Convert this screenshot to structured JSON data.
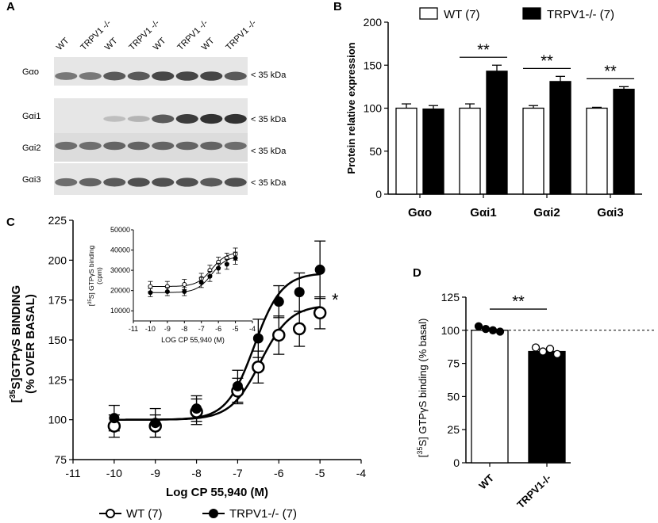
{
  "panels": {
    "A": {
      "letter": "A",
      "lane_labels": [
        "WT",
        "TRPV1 -/-",
        "WT",
        "TRPV1 -/-",
        "WT",
        "TRPV1 -/-",
        "WT",
        "TRPV1 -/-"
      ],
      "rows": [
        {
          "label": "Gαo",
          "kda": "< 35 kDa",
          "intensity": [
            0.55,
            0.55,
            0.7,
            0.7,
            0.8,
            0.8,
            0.8,
            0.7
          ]
        },
        {
          "label": "Gαi1",
          "kda": "< 35 kDa",
          "intensity": [
            0.0,
            0.0,
            0.2,
            0.25,
            0.7,
            0.85,
            0.9,
            0.9
          ]
        },
        {
          "label": "Gαi2",
          "kda": "< 35 kDa",
          "intensity": [
            0.6,
            0.6,
            0.65,
            0.65,
            0.65,
            0.65,
            0.65,
            0.6
          ]
        },
        {
          "label": "Gαi3",
          "kda": "< 35 kDa",
          "intensity": [
            0.6,
            0.65,
            0.7,
            0.75,
            0.75,
            0.75,
            0.7,
            0.75
          ]
        }
      ]
    },
    "B": {
      "letter": "B"
    },
    "C": {
      "letter": "C"
    },
    "D": {
      "letter": "D"
    }
  },
  "chart_data": [
    {
      "id": "B",
      "type": "bar",
      "title": "",
      "ylabel": "Protein relative expression",
      "xlabel": "",
      "ylim": [
        0,
        200
      ],
      "yticks": [
        0,
        50,
        100,
        150,
        200
      ],
      "categories": [
        "Gαo",
        "Gαi1",
        "Gαi2",
        "Gαi3"
      ],
      "series": [
        {
          "name": "WT (7)",
          "color": "#ffffff",
          "values": [
            100,
            100,
            100,
            100
          ],
          "errors": [
            5,
            5,
            3,
            1
          ]
        },
        {
          "name": "TRPV1-/- (7)",
          "color": "#000000",
          "values": [
            99,
            143,
            131,
            122
          ],
          "errors": [
            4,
            7,
            6,
            3
          ]
        }
      ],
      "significance": [
        {
          "category": "Gαi1",
          "label": "**"
        },
        {
          "category": "Gαi2",
          "label": "**"
        },
        {
          "category": "Gαi3",
          "label": "**"
        }
      ]
    },
    {
      "id": "C",
      "type": "scatter",
      "title": "",
      "ylabel_line1": "[35S]GTPγS BINDING",
      "ylabel_line2": "(% OVER BASAL)",
      "ylabel_sup": "35",
      "ylabel_rest": "S]GTPγS BINDING",
      "xlabel": "Log CP 55,940 (M)",
      "xlim": [
        -11,
        -4
      ],
      "ylim": [
        75,
        225
      ],
      "xticks": [
        -11,
        -10,
        -9,
        -8,
        -7,
        -6,
        -5,
        -4
      ],
      "yticks": [
        75,
        100,
        125,
        150,
        175,
        200,
        225
      ],
      "series": [
        {
          "name": "WT (7)",
          "marker": "open",
          "x": [
            -10,
            -9,
            -8,
            -7,
            -6.5,
            -6,
            -5.5,
            -5
          ],
          "y": [
            96,
            96,
            105,
            118,
            133,
            153,
            157,
            167
          ],
          "errors": [
            7,
            7,
            8,
            8,
            10,
            12,
            11,
            10
          ],
          "fit": {
            "bottom": 100,
            "top": 172,
            "logec50": -6.45,
            "hill": 1.2
          }
        },
        {
          "name": "TRPV1-/- (7)",
          "marker": "filled",
          "x": [
            -10,
            -9,
            -8,
            -7,
            -6.5,
            -6,
            -5.5,
            -5
          ],
          "y": [
            101,
            98,
            107,
            121,
            151,
            174,
            180,
            194
          ],
          "errors": [
            8,
            9,
            8,
            10,
            12,
            10,
            12,
            18
          ],
          "fit": {
            "bottom": 100,
            "top": 192,
            "logec50": -6.6,
            "hill": 1.3
          }
        }
      ],
      "annotation": "*",
      "legend_position": "bottom"
    },
    {
      "id": "C-inset",
      "type": "scatter",
      "title": "",
      "ylabel_line1": "[35S] GTPγS binding",
      "ylabel_line2": "(cpm)",
      "ylabel_sup": "35",
      "ylabel_rest": "S] GTPγS binding",
      "xlabel": "LOG CP 55,940 (M)",
      "xlim": [
        -11,
        -4
      ],
      "ylim": [
        5000,
        50000
      ],
      "xticks": [
        -11,
        -10,
        -9,
        -8,
        -7,
        -6,
        -5,
        -4
      ],
      "yticks": [
        10000,
        20000,
        30000,
        40000,
        50000
      ],
      "series": [
        {
          "name": "WT",
          "marker": "open",
          "x": [
            -10,
            -9,
            -8,
            -7,
            -6.5,
            -6,
            -5.5,
            -5
          ],
          "y": [
            22000,
            22000,
            23000,
            26000,
            30000,
            34000,
            36000,
            38000
          ],
          "errors": [
            2500,
            2500,
            2500,
            2500,
            2500,
            2500,
            2500,
            3000
          ],
          "fit": {
            "bottom": 22000,
            "top": 39000,
            "logec50": -6.4,
            "hill": 1
          }
        },
        {
          "name": "TRPV1-/-",
          "marker": "filled",
          "x": [
            -10,
            -9,
            -8,
            -7,
            -6.5,
            -6,
            -5.5,
            -5
          ],
          "y": [
            19000,
            19500,
            19500,
            24000,
            27000,
            31000,
            33000,
            36000
          ],
          "errors": [
            2000,
            2000,
            2000,
            2500,
            2500,
            2500,
            2500,
            3000
          ],
          "fit": {
            "bottom": 19000,
            "top": 37000,
            "logec50": -6.4,
            "hill": 1
          }
        }
      ]
    },
    {
      "id": "D",
      "type": "bar",
      "title": "",
      "ylabel_sup": "35",
      "ylabel_rest": "S] GTPγS binding (% basal)",
      "ylabel": "[35S] GTPγS binding (% basal)",
      "ylim": [
        0,
        125
      ],
      "yticks": [
        0,
        25,
        50,
        75,
        100,
        125
      ],
      "categories": [
        "WT",
        "TRPV1-/-"
      ],
      "values": [
        100,
        84
      ],
      "colors": [
        "#ffffff",
        "#000000"
      ],
      "errors": [
        1.5,
        3
      ],
      "points": [
        [
          103,
          101,
          100,
          99
        ],
        [
          87,
          84,
          86,
          82
        ]
      ],
      "reference_line": 100,
      "significance": "**"
    }
  ],
  "legends": {
    "B": [
      "WT (7)",
      "TRPV1-/- (7)"
    ],
    "C": [
      "WT (7)",
      "TRPV1-/- (7)"
    ]
  }
}
